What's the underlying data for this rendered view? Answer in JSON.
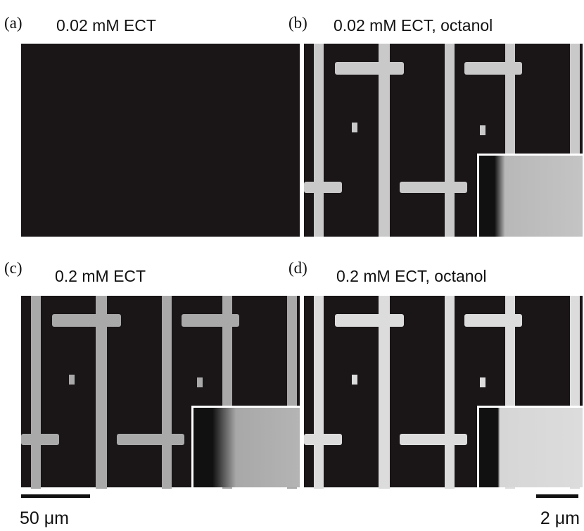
{
  "panels": [
    {
      "label": "(a)",
      "title": "0.02 mM ECT"
    },
    {
      "label": "(b)",
      "title": "0.02 mM ECT, octanol"
    },
    {
      "label": "(c)",
      "title": "0.2 mM ECT"
    },
    {
      "label": "(d)",
      "title": "0.2 mM ECT, octanol"
    }
  ],
  "scale_bars": {
    "main": "50 μm",
    "inset": "2 μm"
  }
}
